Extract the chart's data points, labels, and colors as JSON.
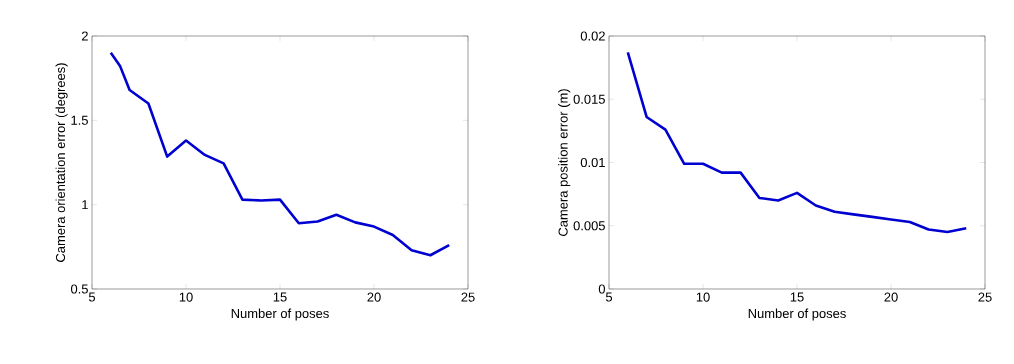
{
  "chart_data": [
    {
      "type": "line",
      "xlabel": "Number of poses",
      "ylabel": "Camera orientation error (degrees)",
      "xlim": [
        5,
        25
      ],
      "ylim": [
        0.5,
        2
      ],
      "xticks": [
        5,
        10,
        15,
        20,
        25
      ],
      "yticks": [
        0.5,
        1,
        1.5,
        2
      ],
      "color": "#0000d0",
      "x": [
        6,
        6.5,
        7,
        8,
        9,
        10,
        11,
        12,
        13,
        14,
        15,
        16,
        17,
        18,
        19,
        20,
        21,
        22,
        23,
        24
      ],
      "values": [
        1.9,
        1.82,
        1.68,
        1.6,
        1.285,
        1.38,
        1.295,
        1.245,
        1.03,
        1.025,
        1.03,
        0.89,
        0.9,
        0.94,
        0.895,
        0.87,
        0.82,
        0.73,
        0.7,
        0.76
      ]
    },
    {
      "type": "line",
      "xlabel": "Number of poses",
      "ylabel": "Camera position error (m)",
      "xlim": [
        5,
        25
      ],
      "ylim": [
        0,
        0.02
      ],
      "xticks": [
        5,
        10,
        15,
        20,
        25
      ],
      "yticks": [
        0,
        0.005,
        0.01,
        0.015,
        0.02
      ],
      "color": "#0000d0",
      "x": [
        6,
        7,
        8,
        9,
        10,
        11,
        12,
        13,
        14,
        15,
        16,
        17,
        18,
        19,
        20,
        21,
        22,
        23,
        24
      ],
      "values": [
        0.0187,
        0.0136,
        0.0126,
        0.0099,
        0.0099,
        0.0092,
        0.0092,
        0.0072,
        0.007,
        0.0076,
        0.0066,
        0.0061,
        0.0059,
        0.0057,
        0.0055,
        0.0053,
        0.0047,
        0.0045,
        0.0048
      ]
    }
  ]
}
